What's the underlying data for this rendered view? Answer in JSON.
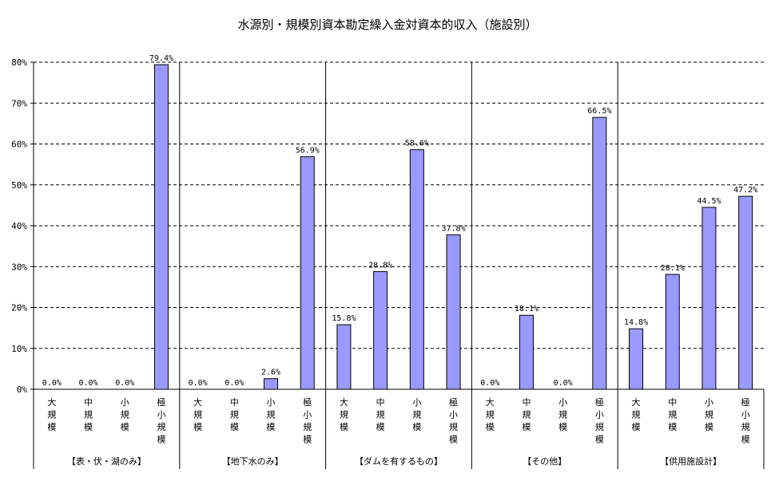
{
  "chart_data": {
    "type": "bar",
    "title": "水源別・規模別資本勘定繰入金対資本的収入（施設別）",
    "ylim": [
      0,
      80
    ],
    "yticks": [
      0,
      10,
      20,
      30,
      40,
      50,
      60,
      70,
      80
    ],
    "ytick_labels": [
      "0%",
      "10%",
      "20%",
      "30%",
      "40%",
      "50%",
      "60%",
      "70%",
      "80%"
    ],
    "grid": true,
    "bar_color": "#9999ff",
    "categories": [
      "大規模",
      "中規模",
      "小規模",
      "極小規模"
    ],
    "groups": [
      {
        "label": "【表・伏・湖のみ】",
        "values": [
          0.0,
          0.0,
          0.0,
          79.4
        ],
        "value_labels": [
          "0.0%",
          "0.0%",
          "0.0%",
          "79.4%"
        ]
      },
      {
        "label": "【地下水のみ】",
        "values": [
          0.0,
          0.0,
          2.6,
          56.9
        ],
        "value_labels": [
          "0.0%",
          "0.0%",
          "2.6%",
          "56.9%"
        ]
      },
      {
        "label": "【ダムを有するもの】",
        "values": [
          15.8,
          28.8,
          58.6,
          37.8
        ],
        "value_labels": [
          "15.8%",
          "28.8%",
          "58.6%",
          "37.8%"
        ]
      },
      {
        "label": "【その他】",
        "values": [
          0.0,
          18.1,
          0.0,
          66.5
        ],
        "value_labels": [
          "0.0%",
          "18.1%",
          "0.0%",
          "66.5%"
        ]
      },
      {
        "label": "【供用施設計】",
        "values": [
          14.8,
          28.1,
          44.5,
          47.2
        ],
        "value_labels": [
          "14.8%",
          "28.1%",
          "44.5%",
          "47.2%"
        ]
      }
    ]
  }
}
